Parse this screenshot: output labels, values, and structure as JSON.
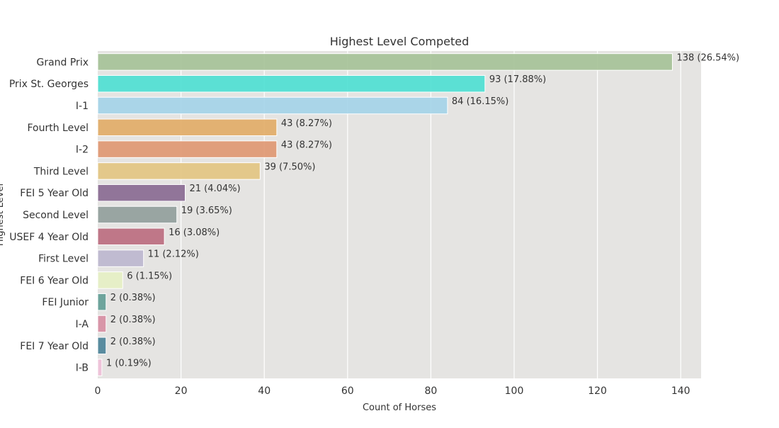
{
  "chart_data": {
    "type": "bar",
    "orientation": "horizontal",
    "title": "Highest Level Competed",
    "xlabel": "Count of Horses",
    "ylabel": "Highest Level",
    "xlim": [
      0,
      145
    ],
    "x_ticks": [
      0,
      20,
      40,
      60,
      80,
      100,
      120,
      140
    ],
    "grid": true,
    "plot_background": "#e5e4e2",
    "categories": [
      "Grand Prix",
      "Prix St. Georges",
      "I-1",
      "Fourth Level",
      "I-2",
      "Third Level",
      "FEI 5 Year Old",
      "Second Level",
      "USEF 4 Year Old",
      "First Level",
      "FEI 6 Year Old",
      "FEI Junior",
      "I-A",
      "FEI 7 Year Old",
      "I-B"
    ],
    "values": [
      138,
      93,
      84,
      43,
      43,
      39,
      21,
      19,
      16,
      11,
      6,
      2,
      2,
      2,
      1
    ],
    "data_labels": [
      "138 (26.54%)",
      "93 (17.88%)",
      "84 (16.15%)",
      "43 (8.27%)",
      "43 (8.27%)",
      "39 (7.50%)",
      "21 (4.04%)",
      "19 (3.65%)",
      "16 (3.08%)",
      "11 (2.12%)",
      "6 (1.15%)",
      "2 (0.38%)",
      "2 (0.38%)",
      "2 (0.38%)",
      "1 (0.19%)"
    ],
    "colors": [
      "#a6c298",
      "#4fe0d2",
      "#a5d4e8",
      "#e2ad68",
      "#df9873",
      "#e3c682",
      "#8a6b92",
      "#939f9c",
      "#bc6e80",
      "#bdb7cf",
      "#e6f0c4",
      "#649e96",
      "#d78fa3",
      "#4e8499",
      "#efc0d8"
    ]
  }
}
